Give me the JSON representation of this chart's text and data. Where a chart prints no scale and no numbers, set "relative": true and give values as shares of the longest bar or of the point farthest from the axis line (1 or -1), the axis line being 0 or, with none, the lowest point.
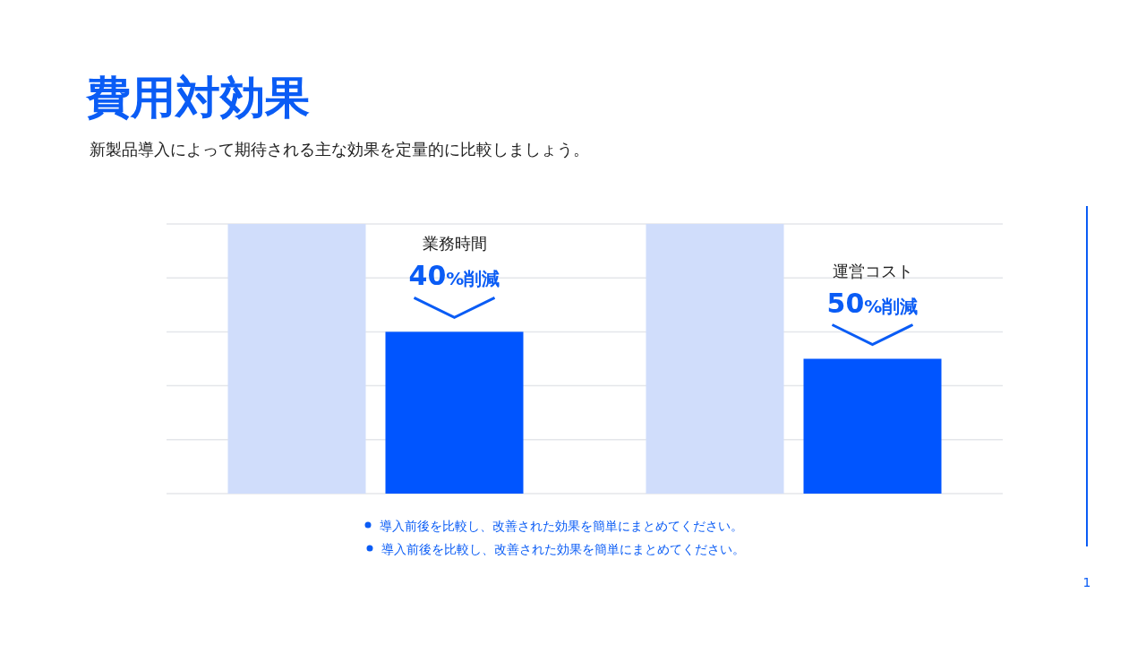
{
  "chart_data": {
    "type": "bar",
    "title": "費用対効果",
    "subtitle": "新製品導入によって期待される主な効果を定量的に比較しましょう。",
    "categories": [
      null,
      null
    ],
    "relative": true,
    "grid": "y",
    "series": [
      {
        "color": "#d0ddfb",
        "values": [
          1,
          1
        ]
      },
      {
        "color": "#0055ff",
        "values": [
          0.6,
          0.5
        ]
      }
    ],
    "annotations": [
      "業務時間",
      "40%削減",
      "運営コスト",
      "50%削減",
      "導入前後を比較し、改善された効果を簡単にまとめてください。",
      "導入前後を比較し、改善された効果を簡単にまとめてください。",
      "1"
    ]
  }
}
